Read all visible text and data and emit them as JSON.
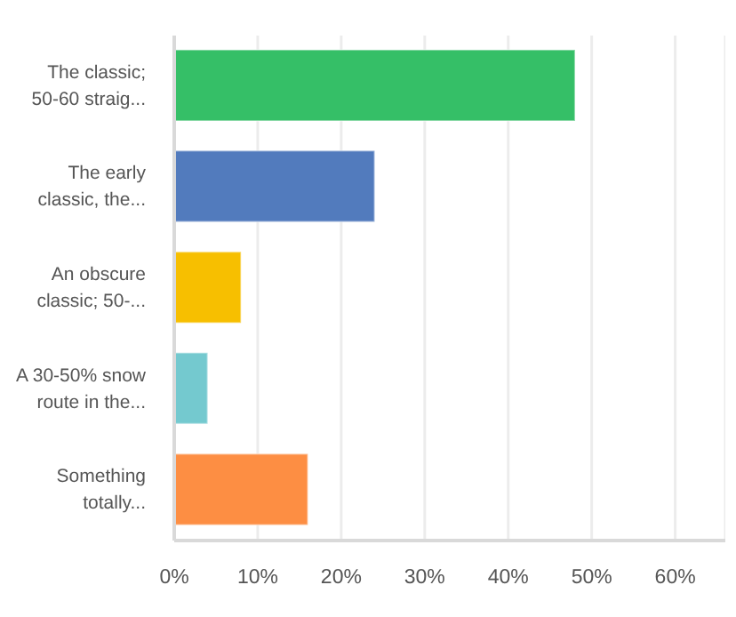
{
  "chart_data": {
    "type": "bar",
    "orientation": "horizontal",
    "categories": [
      "The classic; 50-60 straig...",
      "The early classic, the...",
      "An obscure classic; 50-...",
      "A 30-50% snow route in the...",
      "Something totally..."
    ],
    "values": [
      48,
      24,
      8,
      4,
      16
    ],
    "colors": [
      "#35bf67",
      "#527bbd",
      "#f7bf00",
      "#74c9cf",
      "#fd8e43"
    ],
    "xlim": [
      0,
      66
    ],
    "xticks": [
      {
        "value": 0,
        "label": "0%"
      },
      {
        "value": 10,
        "label": "10%"
      },
      {
        "value": 20,
        "label": "20%"
      },
      {
        "value": 30,
        "label": "30%"
      },
      {
        "value": 40,
        "label": "40%"
      },
      {
        "value": 50,
        "label": "50%"
      },
      {
        "value": 60,
        "label": "60%"
      }
    ],
    "grid": "x"
  }
}
